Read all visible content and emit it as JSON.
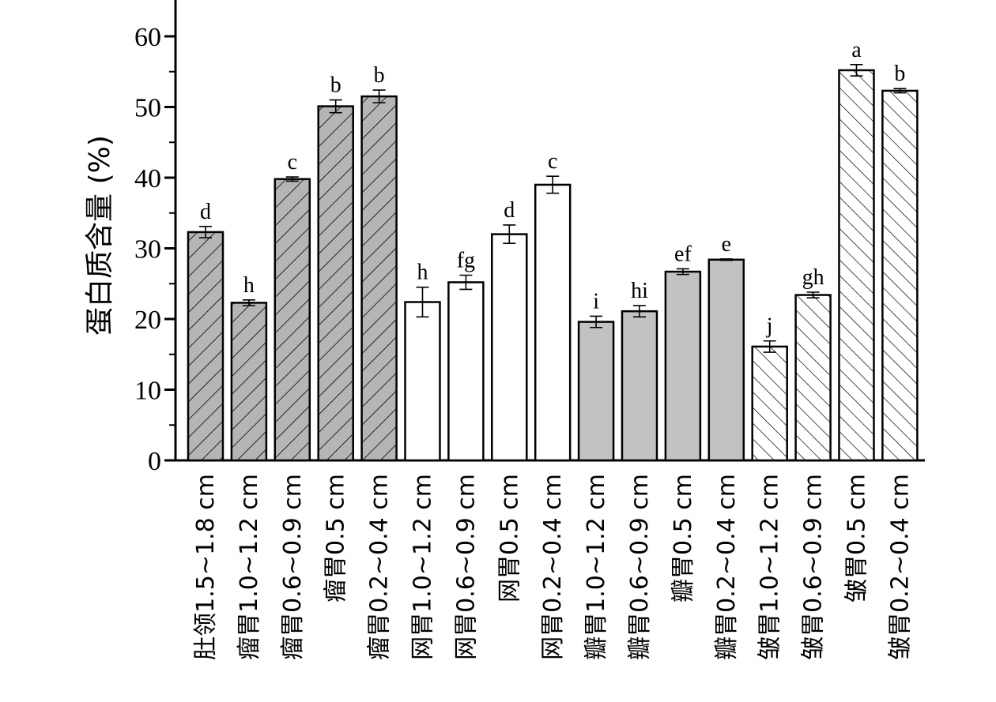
{
  "chart_data": {
    "type": "bar",
    "ylabel": "蛋白质含量 (%)",
    "ylim": [
      0,
      65
    ],
    "yticks": [
      0,
      10,
      20,
      30,
      40,
      50,
      60
    ],
    "grid": false,
    "categories": [
      "肚领1.5~1.8 cm",
      "瘤胃1.0~1.2 cm",
      "瘤胃0.6~0.9 cm",
      "瘤胃0.5 cm",
      "瘤胃0.2~0.4 cm",
      "网胃1.0~1.2 cm",
      "网胃0.6~0.9 cm",
      "网胃0.5 cm",
      "网胃0.2~0.4 cm",
      "瓣胃1.0~1.2 cm",
      "瓣胃0.6~0.9 cm",
      "瓣胃0.5 cm",
      "瓣胃0.2~0.4 cm",
      "皱胃1.0~1.2 cm",
      "皱胃0.6~0.9 cm",
      "皱胃0.5 cm",
      "皱胃0.2~0.4 cm"
    ],
    "values": [
      32.3,
      22.3,
      39.8,
      50.1,
      51.5,
      22.4,
      25.2,
      32.0,
      39.0,
      19.6,
      21.1,
      26.7,
      28.4,
      16.1,
      23.4,
      55.2,
      52.3
    ],
    "errors": [
      0.8,
      0.4,
      0.3,
      0.9,
      0.9,
      2.1,
      1.0,
      1.3,
      1.2,
      0.8,
      0.8,
      0.4,
      0.1,
      0.8,
      0.4,
      0.8,
      0.3
    ],
    "significance": [
      "d",
      "h",
      "c",
      "b",
      "b",
      "h",
      "fg",
      "d",
      "c",
      "i",
      "hi",
      "ef",
      "e",
      "j",
      "gh",
      "a",
      "b"
    ],
    "fills": [
      "hatch-dark",
      "hatch-dark",
      "hatch-dark",
      "hatch-dark",
      "hatch-dark",
      "white",
      "white",
      "white",
      "white",
      "gray",
      "gray",
      "gray",
      "gray",
      "hatch-light",
      "hatch-light",
      "hatch-light",
      "hatch-light"
    ],
    "colors": {
      "dark_fill": "#b5b5b5",
      "gray_fill": "#c2c2c2",
      "stroke": "#000000"
    }
  }
}
